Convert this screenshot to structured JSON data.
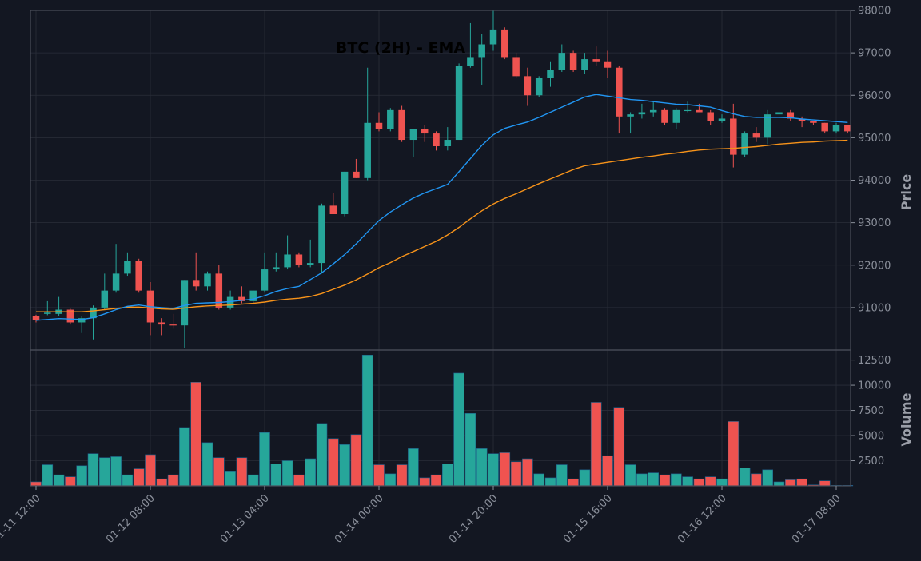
{
  "chart_data": {
    "type": "candlestick",
    "title": "BTC (2H) - EMA",
    "price_axis": {
      "label": "Price",
      "ylim": [
        90000,
        98000
      ],
      "ticks": [
        91000,
        92000,
        93000,
        94000,
        95000,
        96000,
        97000,
        98000
      ],
      "side": "right"
    },
    "volume_axis": {
      "label": "Volume",
      "ylim": [
        0,
        13500
      ],
      "ticks": [
        2500,
        5000,
        7500,
        10000,
        12500
      ],
      "side": "right"
    },
    "x_ticks": [
      {
        "index": 0,
        "label": "01-11 12:00"
      },
      {
        "index": 10,
        "label": "01-12 08:00"
      },
      {
        "index": 20,
        "label": "01-13 04:00"
      },
      {
        "index": 30,
        "label": "01-14 00:00"
      },
      {
        "index": 40,
        "label": "01-14 20:00"
      },
      {
        "index": 50,
        "label": "01-15 16:00"
      },
      {
        "index": 60,
        "label": "01-16 12:00"
      },
      {
        "index": 70,
        "label": "01-17 08:00"
      }
    ],
    "grid": true,
    "colors": {
      "background": "#131722",
      "up": "#26a69a",
      "down": "#ef5350",
      "ema_fast": "#2196f3",
      "ema_slow": "#f7931a",
      "grid": "#2a2e39",
      "axis_text": "#8a8f9a"
    },
    "candles": [
      [
        90800,
        90830,
        90650,
        90700
      ],
      [
        90850,
        91150,
        90820,
        90880
      ],
      [
        90850,
        91250,
        90800,
        90950
      ],
      [
        90950,
        90970,
        90600,
        90650
      ],
      [
        90650,
        90800,
        90400,
        90750
      ],
      [
        90750,
        91050,
        90250,
        91000
      ],
      [
        91000,
        91800,
        90950,
        91400
      ],
      [
        91400,
        92500,
        91350,
        91800
      ],
      [
        91800,
        92300,
        91750,
        92100
      ],
      [
        92100,
        92150,
        91350,
        91400
      ],
      [
        91400,
        91600,
        90350,
        90650
      ],
      [
        90650,
        90750,
        90350,
        90600
      ],
      [
        90600,
        90850,
        90500,
        90580
      ],
      [
        90580,
        91650,
        90050,
        91650
      ],
      [
        91650,
        92300,
        91400,
        91500
      ],
      [
        91500,
        91850,
        91400,
        91800
      ],
      [
        91800,
        92000,
        90950,
        91000
      ],
      [
        91000,
        91400,
        90950,
        91250
      ],
      [
        91250,
        91500,
        91100,
        91150
      ],
      [
        91150,
        91400,
        91100,
        91400
      ],
      [
        91400,
        92300,
        91350,
        91900
      ],
      [
        91900,
        92300,
        91850,
        91950
      ],
      [
        91950,
        92700,
        91900,
        92250
      ],
      [
        92250,
        92300,
        91950,
        92000
      ],
      [
        92000,
        92600,
        91950,
        92050
      ],
      [
        92050,
        93450,
        91800,
        93400
      ],
      [
        93400,
        93700,
        93200,
        93200
      ],
      [
        93200,
        94200,
        93150,
        94200
      ],
      [
        94200,
        94500,
        94050,
        94050
      ],
      [
        94050,
        96650,
        94000,
        95350
      ],
      [
        95350,
        95600,
        95150,
        95200
      ],
      [
        95200,
        95700,
        95150,
        95650
      ],
      [
        95650,
        95750,
        94900,
        94950
      ],
      [
        94950,
        95200,
        94550,
        95200
      ],
      [
        95200,
        95300,
        94900,
        95100
      ],
      [
        95100,
        95150,
        94700,
        94800
      ],
      [
        94800,
        95250,
        94700,
        94950
      ],
      [
        94950,
        96750,
        94950,
        96700
      ],
      [
        96700,
        97700,
        96650,
        96900
      ],
      [
        96900,
        97450,
        96250,
        97200
      ],
      [
        97200,
        98000,
        97050,
        97550
      ],
      [
        97550,
        97600,
        96850,
        96900
      ],
      [
        96900,
        97000,
        96400,
        96450
      ],
      [
        96450,
        96650,
        95750,
        96000
      ],
      [
        96000,
        96450,
        95950,
        96400
      ],
      [
        96400,
        96800,
        96200,
        96600
      ],
      [
        96600,
        97200,
        96550,
        97000
      ],
      [
        97000,
        97050,
        96550,
        96600
      ],
      [
        96600,
        97000,
        96500,
        96850
      ],
      [
        96850,
        97150,
        96700,
        96800
      ],
      [
        96800,
        97050,
        96400,
        96650
      ],
      [
        96650,
        96700,
        95100,
        95500
      ],
      [
        95500,
        95600,
        95100,
        95550
      ],
      [
        95550,
        95800,
        95450,
        95600
      ],
      [
        95600,
        95850,
        95500,
        95650
      ],
      [
        95650,
        95700,
        95300,
        95350
      ],
      [
        95350,
        95700,
        95200,
        95650
      ],
      [
        95650,
        95850,
        95600,
        95650
      ],
      [
        95650,
        95800,
        95600,
        95600
      ],
      [
        95600,
        95650,
        95300,
        95400
      ],
      [
        95400,
        95550,
        95350,
        95450
      ],
      [
        95450,
        95800,
        94300,
        94600
      ],
      [
        94600,
        95150,
        94550,
        95100
      ],
      [
        95100,
        95250,
        94900,
        95000
      ],
      [
        95000,
        95650,
        94850,
        95550
      ],
      [
        95550,
        95650,
        95500,
        95600
      ],
      [
        95600,
        95650,
        95400,
        95450
      ],
      [
        95450,
        95500,
        95250,
        95400
      ],
      [
        95400,
        95400,
        95300,
        95350
      ],
      [
        95350,
        95350,
        95100,
        95150
      ],
      [
        95150,
        95350,
        95100,
        95300
      ],
      [
        95300,
        95300,
        95100,
        95150
      ]
    ],
    "volume": [
      400,
      2100,
      1100,
      900,
      2000,
      3200,
      2800,
      2900,
      1100,
      1700,
      3100,
      700,
      1100,
      5800,
      10300,
      4300,
      2800,
      1400,
      2800,
      1100,
      5300,
      2200,
      2500,
      1100,
      2700,
      6200,
      4700,
      4100,
      5100,
      13000,
      2100,
      1200,
      2100,
      3700,
      800,
      1100,
      2200,
      11200,
      7200,
      3700,
      3200,
      3300,
      2400,
      2700,
      1200,
      800,
      2100,
      700,
      1600,
      8300,
      3000,
      7800,
      2100,
      1200,
      1300,
      1100,
      1200,
      900,
      700,
      900,
      700,
      6400,
      1800,
      1200,
      1600,
      400,
      600,
      700,
      100,
      500,
      50,
      50
    ],
    "ema_fast": [
      90700,
      90720,
      90740,
      90730,
      90720,
      90760,
      90850,
      90950,
      91030,
      91060,
      91020,
      91000,
      90980,
      91050,
      91100,
      91110,
      91120,
      91140,
      91170,
      91200,
      91280,
      91380,
      91450,
      91500,
      91660,
      91820,
      92030,
      92250,
      92500,
      92780,
      93050,
      93250,
      93420,
      93580,
      93700,
      93800,
      93900,
      94200,
      94510,
      94820,
      95070,
      95220,
      95300,
      95370,
      95480,
      95600,
      95720,
      95840,
      95960,
      96020,
      95980,
      95940,
      95900,
      95880,
      95850,
      95820,
      95790,
      95780,
      95750,
      95720,
      95640,
      95560,
      95500,
      95480,
      95480,
      95480,
      95470,
      95440,
      95420,
      95400,
      95380,
      95360
    ],
    "ema_slow": [
      90900,
      90900,
      90900,
      90900,
      90900,
      90920,
      90950,
      90980,
      91010,
      91010,
      90990,
      90970,
      90960,
      90990,
      91020,
      91040,
      91050,
      91060,
      91080,
      91100,
      91130,
      91170,
      91200,
      91220,
      91260,
      91330,
      91430,
      91530,
      91650,
      91790,
      91940,
      92060,
      92200,
      92320,
      92440,
      92560,
      92710,
      92890,
      93090,
      93280,
      93440,
      93570,
      93680,
      93800,
      93920,
      94030,
      94140,
      94250,
      94340,
      94380,
      94420,
      94460,
      94500,
      94540,
      94570,
      94610,
      94640,
      94680,
      94710,
      94730,
      94740,
      94750,
      94770,
      94790,
      94820,
      94850,
      94870,
      94890,
      94900,
      94920,
      94930,
      94940
    ]
  }
}
